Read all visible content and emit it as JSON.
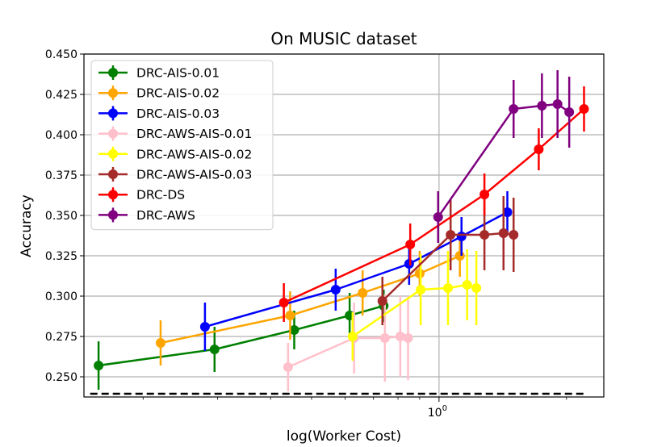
{
  "chart_data": {
    "type": "line",
    "title": "On MUSIC dataset",
    "xlabel": "log(Worker Cost)",
    "ylabel": "Accuracy",
    "xscale": "log",
    "xlim": [
      0.145,
      2.45
    ],
    "ylim": [
      0.2375,
      0.45
    ],
    "x_ticks": [
      {
        "value": 1.0,
        "base": "10",
        "exp": "0"
      }
    ],
    "y_ticks": [
      0.25,
      0.275,
      0.3,
      0.325,
      0.35,
      0.375,
      0.4,
      0.425,
      0.45
    ],
    "y_tick_labels": [
      "0.250",
      "0.275",
      "0.300",
      "0.325",
      "0.350",
      "0.375",
      "0.400",
      "0.425",
      "0.450"
    ],
    "grid": {
      "x_major": true,
      "y_major": true
    },
    "legend_position": "upper-left",
    "baseline": {
      "y": 0.2395,
      "x_range": [
        0.15,
        2.2
      ],
      "color": "#000000",
      "style": "dashed"
    },
    "series": [
      {
        "name": "DRC-AIS-0.01",
        "color": "#008000",
        "x": [
          0.157,
          0.295,
          0.455,
          0.615,
          0.74
        ],
        "y": [
          0.257,
          0.267,
          0.279,
          0.288,
          0.294
        ],
        "err": [
          0.015,
          0.014,
          0.012,
          0.014,
          0.01
        ]
      },
      {
        "name": "DRC-AIS-0.02",
        "color": "#FFA500",
        "x": [
          0.22,
          0.445,
          0.66,
          0.9,
          1.12
        ],
        "y": [
          0.271,
          0.288,
          0.302,
          0.314,
          0.325
        ],
        "err": [
          0.014,
          0.015,
          0.014,
          0.014,
          0.013
        ]
      },
      {
        "name": "DRC-AIS-0.03",
        "color": "#0000FF",
        "x": [
          0.28,
          0.57,
          0.85,
          1.13,
          1.45
        ],
        "y": [
          0.281,
          0.304,
          0.32,
          0.337,
          0.352
        ],
        "err": [
          0.015,
          0.013,
          0.013,
          0.012,
          0.013
        ]
      },
      {
        "name": "DRC-AWS-AIS-0.01",
        "color": "#FFC0CB",
        "x": [
          0.44,
          0.63,
          0.745,
          0.81,
          0.845
        ],
        "y": [
          0.256,
          0.274,
          0.274,
          0.275,
          0.274
        ],
        "err": [
          0.015,
          0.022,
          0.027,
          0.025,
          0.026
        ]
      },
      {
        "name": "DRC-AWS-AIS-0.02",
        "color": "#FFFF00",
        "x": [
          0.625,
          0.905,
          1.05,
          1.165,
          1.225
        ],
        "y": [
          0.275,
          0.304,
          0.305,
          0.307,
          0.305
        ],
        "err": [
          0.015,
          0.022,
          0.023,
          0.022,
          0.023
        ]
      },
      {
        "name": "DRC-AWS-AIS-0.03",
        "color": "#A52A2A",
        "x": [
          0.735,
          1.065,
          1.28,
          1.42,
          1.5
        ],
        "y": [
          0.297,
          0.338,
          0.338,
          0.339,
          0.338
        ],
        "err": [
          0.015,
          0.022,
          0.022,
          0.023,
          0.023
        ]
      },
      {
        "name": "DRC-DS",
        "color": "#FF0000",
        "x": [
          0.43,
          0.855,
          1.28,
          1.72,
          2.2
        ],
        "y": [
          0.296,
          0.332,
          0.363,
          0.391,
          0.416
        ],
        "err": [
          0.012,
          0.013,
          0.013,
          0.013,
          0.014
        ]
      },
      {
        "name": "DRC-AWS",
        "color": "#800080",
        "x": [
          0.995,
          1.5,
          1.75,
          1.905,
          2.03
        ],
        "y": [
          0.349,
          0.416,
          0.418,
          0.419,
          0.414
        ],
        "err": [
          0.016,
          0.018,
          0.02,
          0.021,
          0.022
        ]
      }
    ]
  }
}
